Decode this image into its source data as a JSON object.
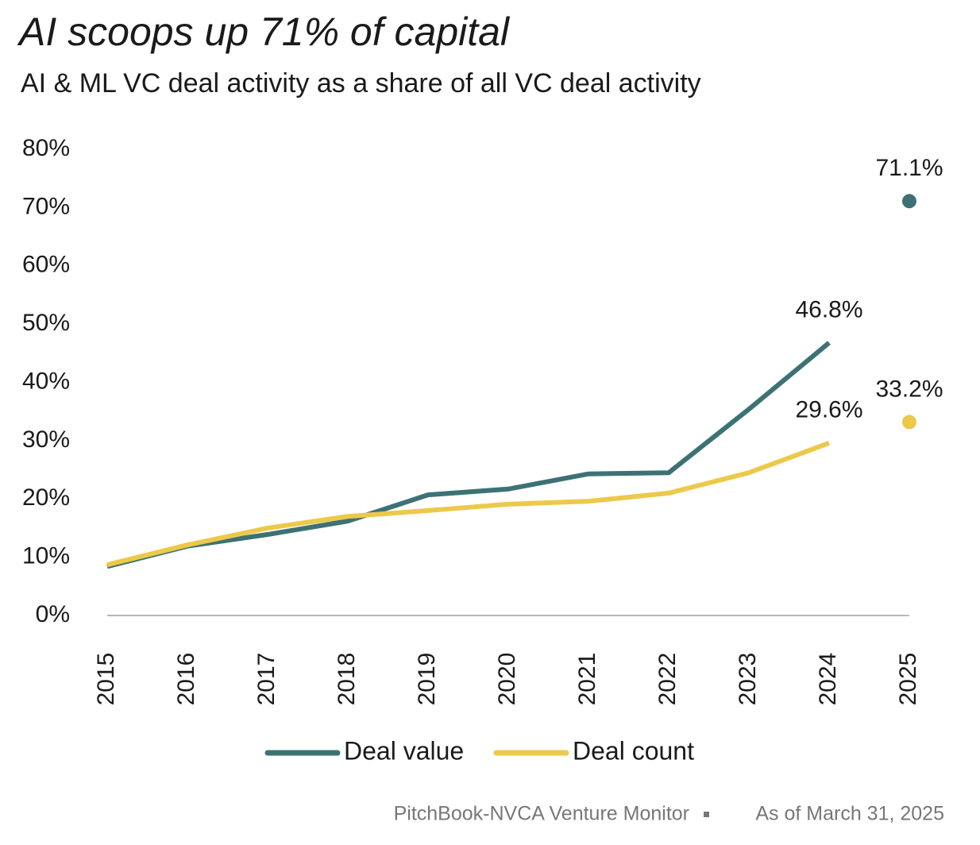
{
  "chart_data": {
    "type": "line",
    "title": "AI scoops up 71% of capital",
    "subtitle": "AI & ML VC deal activity as a share of all VC deal activity",
    "categories": [
      "2015",
      "2016",
      "2017",
      "2018",
      "2019",
      "2020",
      "2021",
      "2022",
      "2023",
      "2024",
      "2025"
    ],
    "series": [
      {
        "name": "Deal value",
        "color": "#3d7275",
        "values": [
          8.4,
          11.9,
          13.9,
          16.2,
          20.7,
          21.7,
          24.3,
          24.5,
          35.4,
          46.8,
          71.1
        ],
        "value_labels": [
          null,
          null,
          null,
          null,
          null,
          null,
          null,
          null,
          null,
          "46.8%",
          "71.1%"
        ]
      },
      {
        "name": "Deal count",
        "color": "#ecc94b",
        "values": [
          8.7,
          12.1,
          15.0,
          17.0,
          18.0,
          19.1,
          19.6,
          21.0,
          24.5,
          29.6,
          33.2
        ],
        "value_labels": [
          null,
          null,
          null,
          null,
          null,
          null,
          null,
          null,
          null,
          "29.6%",
          "33.2%"
        ]
      }
    ],
    "detached_last": true,
    "ylim": [
      0,
      80
    ],
    "yticks": [
      {
        "value": 0,
        "label": "0%"
      },
      {
        "value": 10,
        "label": "10%"
      },
      {
        "value": 20,
        "label": "20%"
      },
      {
        "value": 30,
        "label": "30%"
      },
      {
        "value": 40,
        "label": "40%"
      },
      {
        "value": 50,
        "label": "50%"
      },
      {
        "value": 60,
        "label": "60%"
      },
      {
        "value": 70,
        "label": "70%"
      },
      {
        "value": 80,
        "label": "80%"
      }
    ],
    "grid": false,
    "legend": "bottom",
    "source": [
      "PitchBook-NVCA Venture Monitor",
      "As of March 31, 2025"
    ]
  }
}
